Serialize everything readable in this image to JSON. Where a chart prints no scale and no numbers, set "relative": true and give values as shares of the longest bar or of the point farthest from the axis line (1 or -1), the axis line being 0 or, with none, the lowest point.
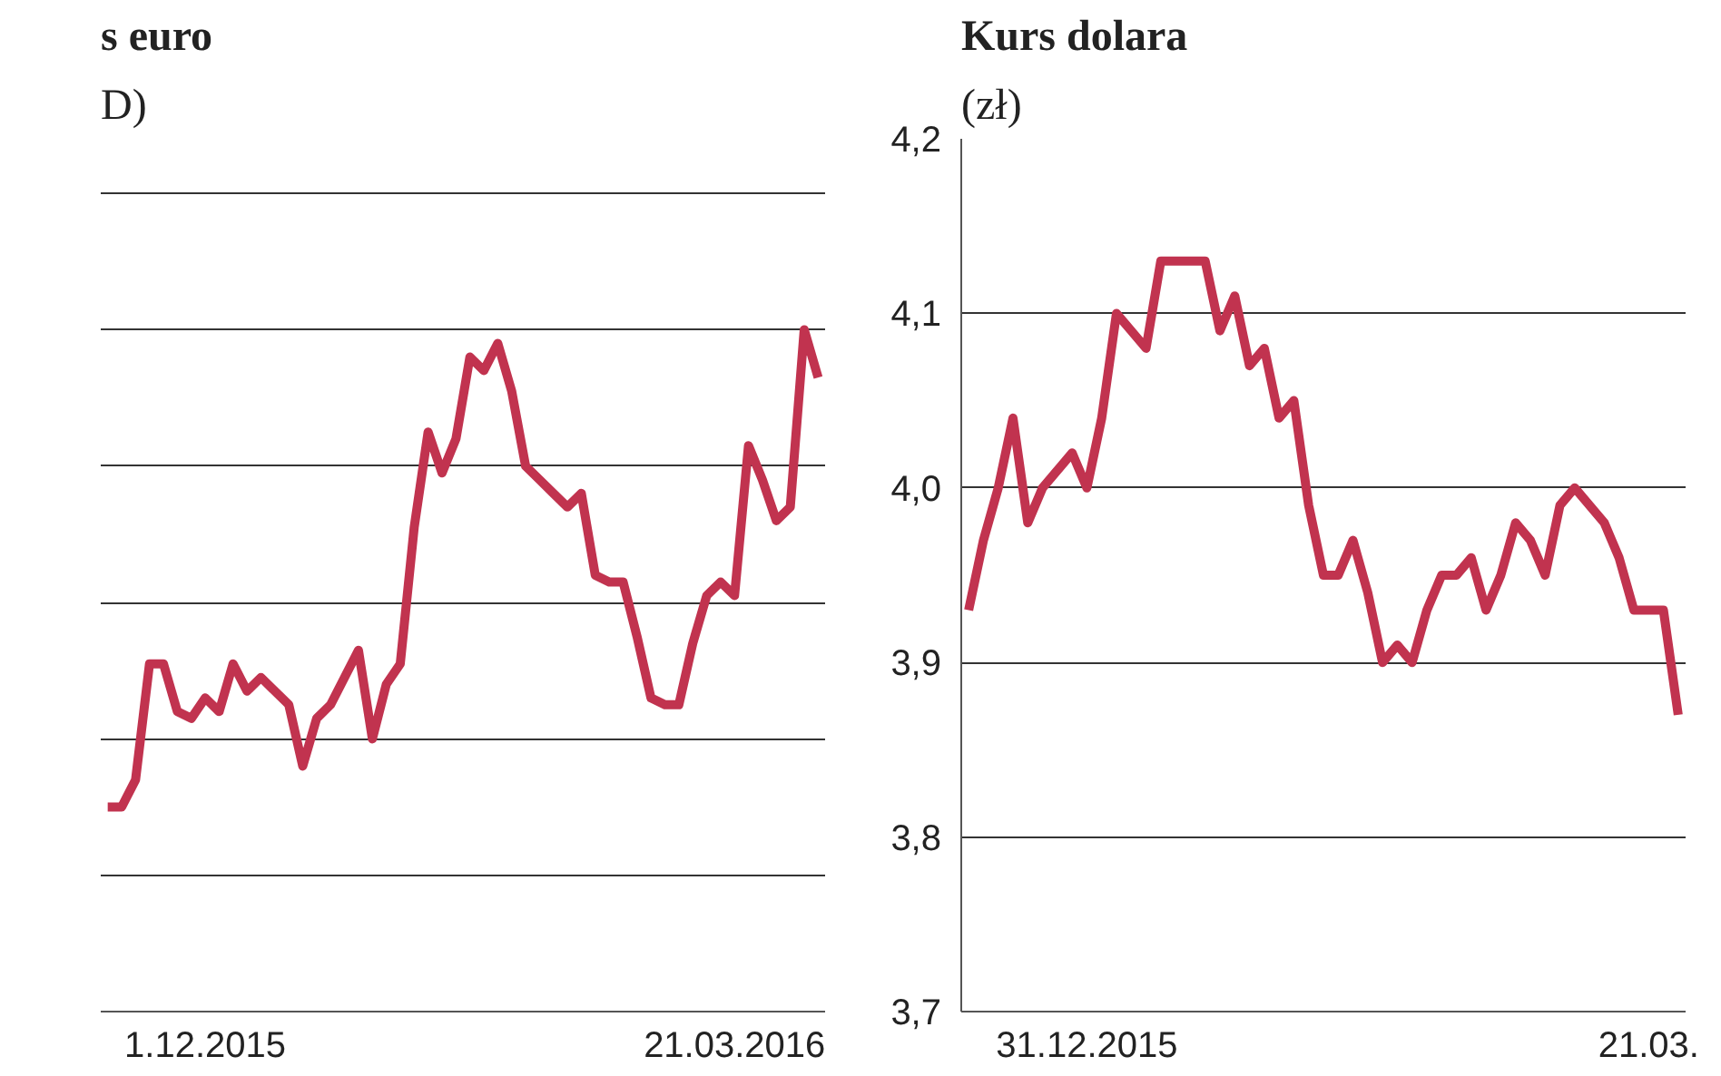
{
  "chart_data": [
    {
      "type": "line",
      "title": "s euro",
      "subtitle": "D)",
      "relative": true,
      "grid": "y",
      "line_style": "solid",
      "categories": [
        null,
        null,
        null,
        null,
        null,
        null,
        null,
        "1.12.2015",
        null,
        null,
        null,
        null,
        null,
        null,
        null,
        null,
        null,
        null,
        null,
        null,
        null,
        null,
        null,
        null,
        null,
        null,
        null,
        null,
        null,
        null,
        null,
        null,
        null,
        null,
        null,
        null,
        null,
        null,
        null,
        null,
        null,
        null,
        null,
        null,
        null,
        "21.03.2016",
        null,
        null,
        null,
        null,
        null,
        null
      ],
      "series": [
        {
          "color": "#c1334f",
          "values": [
            0.3,
            0.3,
            0.34,
            0.51,
            0.51,
            0.44,
            0.43,
            0.46,
            0.44,
            0.51,
            0.47,
            0.49,
            0.47,
            0.45,
            0.36,
            0.43,
            0.45,
            0.49,
            0.53,
            0.4,
            0.48,
            0.51,
            0.71,
            0.85,
            0.79,
            0.84,
            0.96,
            0.94,
            0.98,
            0.91,
            0.8,
            0.78,
            0.76,
            0.74,
            0.76,
            0.64,
            0.63,
            0.63,
            0.55,
            0.46,
            0.45,
            0.45,
            0.54,
            0.61,
            0.63,
            0.61,
            0.83,
            0.78,
            0.72,
            0.74,
            1.0,
            0.93
          ]
        }
      ]
    },
    {
      "type": "line",
      "title": "Kurs dolara",
      "subtitle": "(zł)",
      "grid": "y",
      "line_style": "solid",
      "ylim": [
        3.7,
        4.2
      ],
      "yticks": [
        {
          "value": 3.7,
          "label": "3,7"
        },
        {
          "value": 3.8,
          "label": "3,8"
        },
        {
          "value": 3.9,
          "label": "3,9"
        },
        {
          "value": 4.0,
          "label": "4,0"
        },
        {
          "value": 4.1,
          "label": "4,1"
        },
        {
          "value": 4.2,
          "label": "4,2"
        }
      ],
      "categories": [
        null,
        null,
        null,
        null,
        null,
        null,
        null,
        null,
        "31.12.2015",
        null,
        null,
        null,
        null,
        null,
        null,
        null,
        null,
        null,
        null,
        null,
        null,
        null,
        null,
        null,
        null,
        null,
        null,
        null,
        null,
        null,
        null,
        null,
        null,
        null,
        null,
        null,
        null,
        null,
        null,
        null,
        null,
        null,
        null,
        null,
        null,
        null,
        "21.03.",
        null,
        null
      ],
      "series": [
        {
          "color": "#c1334f",
          "values": [
            3.93,
            3.97,
            4.0,
            4.04,
            3.98,
            4.0,
            4.01,
            4.02,
            4.0,
            4.04,
            4.1,
            4.09,
            4.08,
            4.13,
            4.13,
            4.13,
            4.13,
            4.09,
            4.11,
            4.07,
            4.08,
            4.04,
            4.05,
            3.99,
            3.95,
            3.95,
            3.97,
            3.94,
            3.9,
            3.91,
            3.9,
            3.93,
            3.95,
            3.95,
            3.96,
            3.93,
            3.95,
            3.98,
            3.97,
            3.95,
            3.99,
            4.0,
            3.99,
            3.98,
            3.96,
            3.93,
            3.93,
            3.93,
            3.87
          ]
        }
      ]
    }
  ]
}
